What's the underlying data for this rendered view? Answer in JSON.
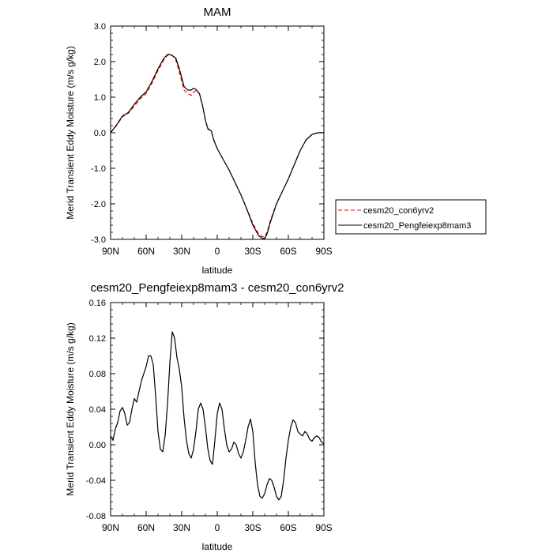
{
  "chart_data": [
    {
      "type": "line",
      "title": "MAM",
      "xlabel": "latitude",
      "ylabel": "Merid Transient Eddy Moisture (m/s g/kg)",
      "xlim": [
        90,
        -90
      ],
      "ylim": [
        -3.0,
        3.0
      ],
      "x_ticks": [
        90,
        60,
        30,
        0,
        -30,
        -60,
        -90
      ],
      "x_tick_labels": [
        "90N",
        "60N",
        "30N",
        "0",
        "30S",
        "60S",
        "90S"
      ],
      "y_ticks": [
        3,
        2,
        1,
        0,
        -1,
        -2,
        -3
      ],
      "y_tick_labels": [
        "3.0",
        "2.0",
        "1.0",
        "0.0",
        "-1.0",
        "-2.0",
        "-3.0"
      ],
      "legend_position": "right",
      "series": [
        {
          "name": "cesm20_con6yrv2",
          "color": "#ff0000",
          "dash": "dashed",
          "x": [
            90,
            85,
            80,
            75,
            70,
            65,
            60,
            55,
            50,
            45,
            42,
            40,
            38,
            35,
            32,
            30,
            28,
            25,
            22,
            20,
            18,
            15,
            12,
            10,
            8,
            5,
            3,
            0,
            -5,
            -10,
            -15,
            -20,
            -25,
            -30,
            -35,
            -38,
            -40,
            -42,
            -45,
            -50,
            -55,
            -60,
            -65,
            -70,
            -75,
            -80,
            -85,
            -90
          ],
          "y": [
            0.0,
            0.2,
            0.45,
            0.55,
            0.75,
            0.95,
            1.1,
            1.4,
            1.75,
            2.05,
            2.18,
            2.2,
            2.18,
            2.05,
            1.7,
            1.45,
            1.2,
            1.1,
            1.05,
            1.15,
            1.18,
            1.1,
            0.7,
            0.35,
            0.1,
            0.05,
            -0.2,
            -0.45,
            -0.75,
            -1.05,
            -1.4,
            -1.75,
            -2.15,
            -2.55,
            -2.85,
            -2.92,
            -2.93,
            -2.8,
            -2.45,
            -2.0,
            -1.65,
            -1.3,
            -0.9,
            -0.5,
            -0.2,
            -0.05,
            0.0,
            0.0
          ]
        },
        {
          "name": "cesm20_Pengfeiexp8mam3",
          "color": "#000000",
          "dash": "solid",
          "x": [
            90,
            85,
            80,
            75,
            70,
            65,
            60,
            55,
            50,
            45,
            42,
            40,
            38,
            35,
            32,
            30,
            28,
            25,
            22,
            20,
            18,
            15,
            12,
            10,
            8,
            5,
            3,
            0,
            -5,
            -10,
            -15,
            -20,
            -25,
            -30,
            -35,
            -38,
            -40,
            -42,
            -45,
            -50,
            -55,
            -60,
            -65,
            -70,
            -75,
            -80,
            -85,
            -90
          ],
          "y": [
            0.0,
            0.22,
            0.47,
            0.57,
            0.8,
            1.0,
            1.15,
            1.45,
            1.8,
            2.1,
            2.2,
            2.2,
            2.17,
            2.1,
            1.8,
            1.55,
            1.3,
            1.2,
            1.2,
            1.25,
            1.22,
            1.1,
            0.7,
            0.35,
            0.12,
            0.05,
            -0.2,
            -0.45,
            -0.75,
            -1.05,
            -1.4,
            -1.75,
            -2.15,
            -2.6,
            -2.9,
            -2.97,
            -2.98,
            -2.85,
            -2.5,
            -2.0,
            -1.65,
            -1.3,
            -0.9,
            -0.5,
            -0.2,
            -0.05,
            0.0,
            0.0
          ]
        }
      ]
    },
    {
      "type": "line",
      "title": "cesm20_Pengfeiexp8mam3 - cesm20_con6yrv2",
      "xlabel": "latitude",
      "ylabel": "Merid Transient Eddy Moisture (m/s g/kg)",
      "xlim": [
        90,
        -90
      ],
      "ylim": [
        -0.08,
        0.16
      ],
      "x_ticks": [
        90,
        60,
        30,
        0,
        -30,
        -60,
        -90
      ],
      "x_tick_labels": [
        "90N",
        "60N",
        "30N",
        "0",
        "30S",
        "60S",
        "90S"
      ],
      "y_ticks": [
        0.16,
        0.12,
        0.08,
        0.04,
        0.0,
        -0.04,
        -0.08
      ],
      "y_tick_labels": [
        "0.16",
        "0.12",
        "0.08",
        "0.04",
        "0.00",
        "-0.04",
        "-0.08"
      ],
      "series": [
        {
          "name": "",
          "color": "#000000",
          "dash": "solid",
          "x": [
            90,
            88,
            86,
            84,
            82,
            80,
            78,
            76,
            74,
            72,
            70,
            68,
            66,
            64,
            62,
            60,
            58,
            56,
            54,
            52,
            50,
            48,
            46,
            44,
            42,
            40,
            38,
            36,
            34,
            32,
            30,
            28,
            26,
            24,
            22,
            20,
            18,
            16,
            14,
            12,
            10,
            8,
            6,
            4,
            2,
            0,
            -2,
            -4,
            -6,
            -8,
            -10,
            -12,
            -14,
            -16,
            -18,
            -20,
            -22,
            -24,
            -26,
            -28,
            -30,
            -32,
            -34,
            -36,
            -38,
            -40,
            -42,
            -44,
            -46,
            -48,
            -50,
            -52,
            -54,
            -56,
            -58,
            -60,
            -62,
            -64,
            -66,
            -68,
            -70,
            -72,
            -74,
            -76,
            -78,
            -80,
            -82,
            -84,
            -86,
            -88,
            -90
          ],
          "y": [
            0.01,
            0.005,
            0.018,
            0.025,
            0.038,
            0.042,
            0.035,
            0.022,
            0.025,
            0.04,
            0.052,
            0.048,
            0.06,
            0.072,
            0.08,
            0.088,
            0.1,
            0.1,
            0.09,
            0.055,
            0.015,
            -0.005,
            -0.008,
            0.01,
            0.045,
            0.092,
            0.127,
            0.12,
            0.098,
            0.085,
            0.065,
            0.03,
            0.005,
            -0.01,
            -0.015,
            -0.005,
            0.015,
            0.04,
            0.047,
            0.04,
            0.02,
            -0.004,
            -0.018,
            -0.022,
            0.005,
            0.035,
            0.047,
            0.04,
            0.018,
            0.0,
            -0.008,
            -0.005,
            0.003,
            0.0,
            -0.01,
            -0.015,
            -0.008,
            0.005,
            0.02,
            0.029,
            0.015,
            -0.02,
            -0.045,
            -0.058,
            -0.06,
            -0.055,
            -0.045,
            -0.038,
            -0.04,
            -0.048,
            -0.058,
            -0.062,
            -0.058,
            -0.04,
            -0.015,
            0.005,
            0.02,
            0.028,
            0.025,
            0.015,
            0.012,
            0.01,
            0.015,
            0.012,
            0.006,
            0.004,
            0.008,
            0.01,
            0.008,
            0.003,
            0.001
          ]
        }
      ]
    }
  ]
}
